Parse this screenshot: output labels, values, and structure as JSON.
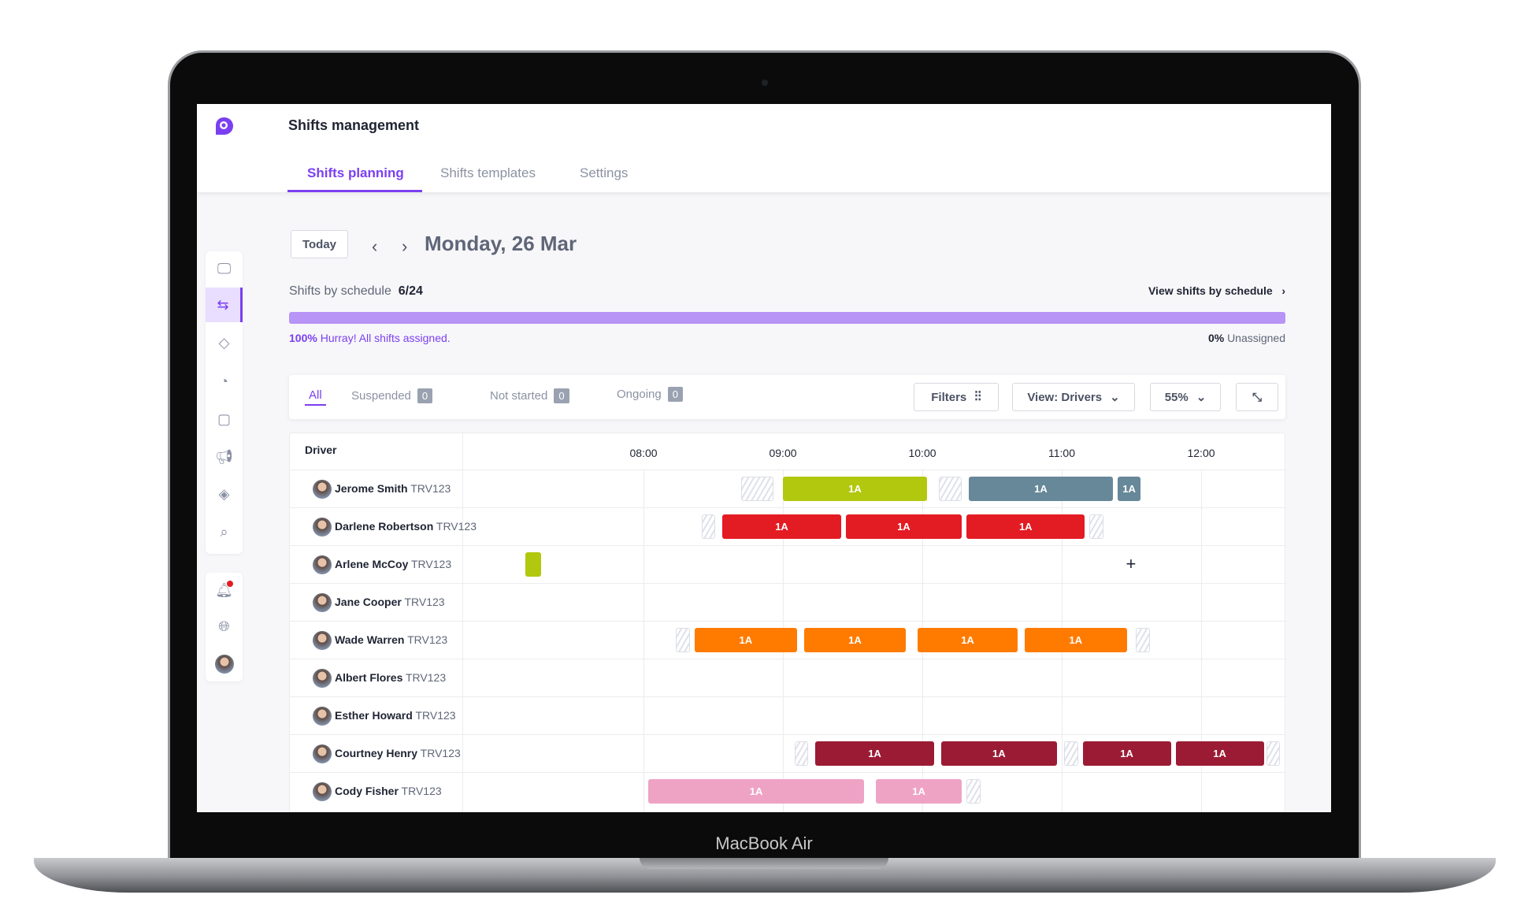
{
  "device": {
    "label": "MacBook Air"
  },
  "app": {
    "title": "Shifts management",
    "tabs": [
      {
        "label": "Shifts planning",
        "active": true
      },
      {
        "label": "Shifts templates"
      },
      {
        "label": "Settings"
      }
    ],
    "accent": "#7b3ff2"
  },
  "sidebar": {
    "items": [
      {
        "icon": "monitor-signal-icon"
      },
      {
        "icon": "route-icon",
        "active": true
      },
      {
        "icon": "ticket-icon"
      },
      {
        "icon": "pie-chart-icon"
      },
      {
        "icon": "alert-message-icon"
      },
      {
        "icon": "megaphone-icon"
      },
      {
        "icon": "tag-icon"
      },
      {
        "icon": "search-location-icon"
      }
    ],
    "bottom": [
      {
        "icon": "bell-icon",
        "notification": true
      },
      {
        "icon": "globe-icon"
      },
      {
        "icon": "user-avatar-icon"
      }
    ]
  },
  "toolbar": {
    "today": "Today",
    "date": "Monday, 26 Mar"
  },
  "summary": {
    "label": "Shifts by schedule",
    "count": "6/24",
    "link": "View shifts by schedule",
    "progress": 100,
    "assigned_pct": "100%",
    "assigned_msg": "Hurray! All shifts assigned.",
    "unassigned_pct": "0%",
    "unassigned_label": "Unassigned"
  },
  "filters": {
    "tabs": [
      {
        "label": "All",
        "active": true
      },
      {
        "label": "Suspended",
        "count": "0"
      },
      {
        "label": "Not started",
        "count": "0"
      },
      {
        "label": "Ongoing",
        "count": "0"
      }
    ],
    "filters_label": "Filters",
    "view_label": "View: Drivers",
    "zoom": "55%"
  },
  "timeline": {
    "column_header": "Driver",
    "hours": [
      "08:00",
      "09:00",
      "10:00",
      "11:00",
      "12:00"
    ]
  },
  "drivers": [
    {
      "name": "Jerome Smith",
      "id": "TRV123",
      "shifts": [
        {
          "s": "08:42",
          "e": "08:56",
          "t": "hatch"
        },
        {
          "s": "09:00",
          "e": "10:02",
          "label": "1A",
          "color": "#b1c80e"
        },
        {
          "s": "10:07",
          "e": "10:17",
          "t": "hatch"
        },
        {
          "s": "10:20",
          "e": "11:22",
          "label": "1A",
          "color": "#678899"
        },
        {
          "s": "11:24",
          "e": "11:34",
          "label": "1A",
          "color": "#678899"
        }
      ]
    },
    {
      "name": "Darlene Robertson",
      "id": "TRV123",
      "shifts": [
        {
          "s": "08:25",
          "e": "08:31",
          "t": "hatch"
        },
        {
          "s": "08:34",
          "e": "09:25",
          "label": "1A",
          "color": "#e31b23"
        },
        {
          "s": "09:27",
          "e": "10:17",
          "label": "1A",
          "color": "#e31b23"
        },
        {
          "s": "10:19",
          "e": "11:10",
          "label": "1A",
          "color": "#e31b23"
        },
        {
          "s": "11:12",
          "e": "11:18",
          "t": "hatch"
        }
      ]
    },
    {
      "name": "Arlene McCoy",
      "id": "TRV123",
      "shifts": [
        {
          "s": "07:09",
          "e": "07:16",
          "color": "#b1c80e"
        }
      ],
      "add_at": "11:30"
    },
    {
      "name": "Jane Cooper",
      "id": "TRV123",
      "shifts": []
    },
    {
      "name": "Wade Warren",
      "id": "TRV123",
      "shifts": [
        {
          "s": "08:14",
          "e": "08:20",
          "t": "hatch"
        },
        {
          "s": "08:22",
          "e": "09:06",
          "label": "1A",
          "color": "#ff7b00"
        },
        {
          "s": "09:09",
          "e": "09:53",
          "label": "1A",
          "color": "#ff7b00"
        },
        {
          "s": "09:58",
          "e": "10:41",
          "label": "1A",
          "color": "#ff7b00"
        },
        {
          "s": "10:44",
          "e": "11:28",
          "label": "1A",
          "color": "#ff7b00"
        },
        {
          "s": "11:32",
          "e": "11:38",
          "t": "hatch"
        }
      ]
    },
    {
      "name": "Albert Flores",
      "id": "TRV123",
      "shifts": []
    },
    {
      "name": "Esther Howard",
      "id": "TRV123",
      "shifts": []
    },
    {
      "name": "Courtney Henry",
      "id": "TRV123",
      "shifts": [
        {
          "s": "09:05",
          "e": "09:11",
          "t": "hatch"
        },
        {
          "s": "09:14",
          "e": "10:05",
          "label": "1A",
          "color": "#9b1b35"
        },
        {
          "s": "10:08",
          "e": "10:58",
          "label": "1A",
          "color": "#9b1b35"
        },
        {
          "s": "11:01",
          "e": "11:07",
          "t": "hatch"
        },
        {
          "s": "11:09",
          "e": "11:47",
          "label": "1A",
          "color": "#9b1b35"
        },
        {
          "s": "11:49",
          "e": "12:27",
          "label": "1A",
          "color": "#9b1b35"
        },
        {
          "s": "12:28",
          "e": "12:34",
          "t": "hatch"
        }
      ]
    },
    {
      "name": "Cody Fisher",
      "id": "TRV123",
      "shifts": [
        {
          "s": "08:02",
          "e": "09:35",
          "label": "1A",
          "color": "#eea3c5"
        },
        {
          "s": "09:40",
          "e": "10:17",
          "label": "1A",
          "color": "#eea3c5"
        },
        {
          "s": "10:19",
          "e": "10:25",
          "t": "hatch"
        }
      ]
    }
  ]
}
